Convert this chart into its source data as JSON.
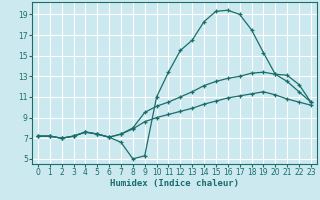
{
  "xlabel": "Humidex (Indice chaleur)",
  "bg_color": "#cce9f0",
  "grid_color": "#ffffff",
  "line_color": "#1a6e6a",
  "xlim": [
    -0.5,
    23.5
  ],
  "ylim": [
    4.5,
    20.2
  ],
  "xticks": [
    0,
    1,
    2,
    3,
    4,
    5,
    6,
    7,
    8,
    9,
    10,
    11,
    12,
    13,
    14,
    15,
    16,
    17,
    18,
    19,
    20,
    21,
    22,
    23
  ],
  "yticks": [
    5,
    7,
    9,
    11,
    13,
    15,
    17,
    19
  ],
  "line1_x": [
    0,
    1,
    2,
    3,
    4,
    5,
    6,
    7,
    8,
    9,
    10,
    11,
    12,
    13,
    14,
    15,
    16,
    17,
    18,
    19,
    20,
    21,
    22,
    23
  ],
  "line1_y": [
    7.2,
    7.2,
    7.0,
    7.2,
    7.6,
    7.4,
    7.1,
    6.6,
    5.0,
    5.3,
    11.0,
    13.4,
    15.5,
    16.5,
    18.3,
    19.3,
    19.4,
    19.0,
    17.5,
    15.3,
    13.2,
    13.1,
    12.2,
    10.5
  ],
  "line2_x": [
    0,
    1,
    2,
    3,
    4,
    5,
    6,
    7,
    8,
    9,
    10,
    11,
    12,
    13,
    14,
    15,
    16,
    17,
    18,
    19,
    20,
    21,
    22,
    23
  ],
  "line2_y": [
    7.2,
    7.2,
    7.0,
    7.2,
    7.6,
    7.4,
    7.1,
    7.4,
    8.0,
    9.5,
    10.1,
    10.5,
    11.0,
    11.5,
    12.1,
    12.5,
    12.8,
    13.0,
    13.3,
    13.4,
    13.2,
    12.5,
    11.5,
    10.5
  ],
  "line3_x": [
    0,
    1,
    2,
    3,
    4,
    5,
    6,
    7,
    8,
    9,
    10,
    11,
    12,
    13,
    14,
    15,
    16,
    17,
    18,
    19,
    20,
    21,
    22,
    23
  ],
  "line3_y": [
    7.2,
    7.2,
    7.0,
    7.2,
    7.6,
    7.4,
    7.1,
    7.4,
    7.9,
    8.6,
    9.0,
    9.3,
    9.6,
    9.9,
    10.3,
    10.6,
    10.9,
    11.1,
    11.3,
    11.5,
    11.2,
    10.8,
    10.5,
    10.2
  ]
}
